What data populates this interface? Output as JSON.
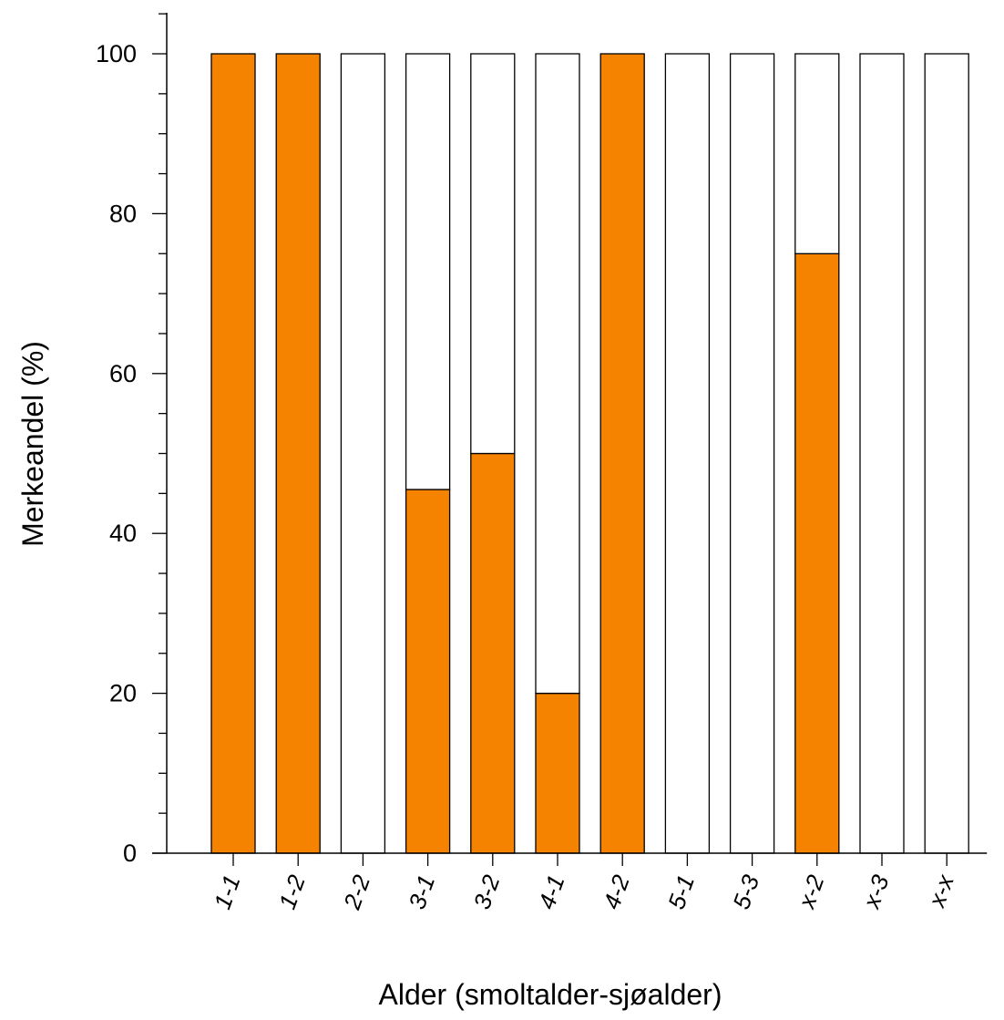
{
  "chart_data": {
    "type": "bar",
    "title": "",
    "xlabel": "Alder (smoltalder-sjøalder)",
    "ylabel": "Merkeandel (%)",
    "ylim": [
      0,
      100
    ],
    "yticks": [
      "0",
      "20",
      "40",
      "60",
      "80",
      "100"
    ],
    "categories": [
      "1-1",
      "1-2",
      "2-2",
      "3-1",
      "3-2",
      "4-1",
      "4-2",
      "5-1",
      "5-3",
      "x-2",
      "x-3",
      "x-x"
    ],
    "series": [
      {
        "values": [
          100,
          100,
          0,
          45.5,
          50,
          20,
          100,
          0,
          0,
          75,
          0,
          0
        ],
        "color": "#f58300"
      },
      {
        "values": [
          0,
          0,
          100,
          54.5,
          50,
          80,
          0,
          100,
          100,
          25,
          100,
          100
        ],
        "color": "#ffffff"
      }
    ],
    "stacked": true,
    "grid": false,
    "legend": "none"
  }
}
